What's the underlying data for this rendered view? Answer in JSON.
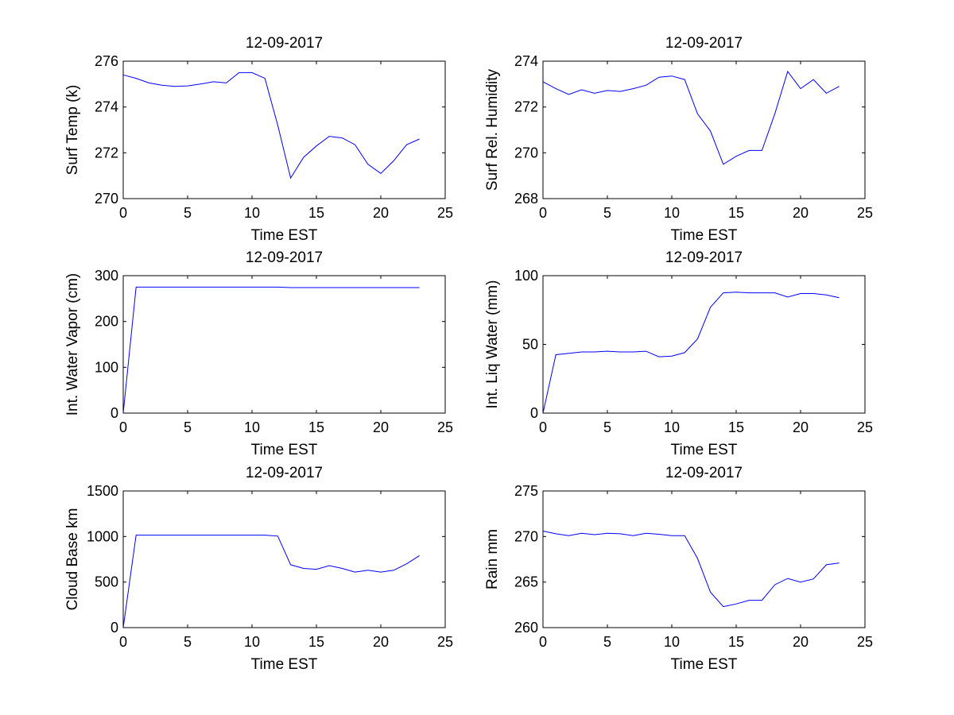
{
  "figure": {
    "background": "#ffffff",
    "line_color": "#0000ff"
  },
  "chart_data": [
    {
      "type": "line",
      "title": "12-09-2017",
      "xlabel": "Time EST",
      "ylabel": "Surf Temp (k)",
      "xlim": [
        0,
        25
      ],
      "ylim": [
        270,
        276
      ],
      "xticks": [
        "0",
        "5",
        "10",
        "15",
        "20",
        "25"
      ],
      "yticks": [
        "270",
        "272",
        "274",
        "276"
      ],
      "grid": false,
      "series": [
        {
          "x": [
            0,
            1,
            2,
            3,
            4,
            5,
            6,
            7,
            8,
            9,
            10,
            11,
            12,
            13,
            14,
            15,
            16,
            17,
            18,
            19,
            20,
            21,
            22,
            23
          ],
          "y": [
            275.4,
            275.25,
            275.05,
            274.95,
            274.9,
            274.92,
            275.0,
            275.1,
            275.05,
            275.5,
            275.5,
            275.25,
            273.2,
            270.9,
            271.8,
            272.3,
            272.72,
            272.65,
            272.35,
            271.5,
            271.1,
            271.65,
            272.35,
            272.6
          ]
        }
      ]
    },
    {
      "type": "line",
      "title": "12-09-2017",
      "xlabel": "Time EST",
      "ylabel": "Surf Rel. Humidity",
      "xlim": [
        0,
        25
      ],
      "ylim": [
        268,
        274
      ],
      "xticks": [
        "0",
        "5",
        "10",
        "15",
        "20",
        "25"
      ],
      "yticks": [
        "268",
        "270",
        "272",
        "274"
      ],
      "grid": false,
      "series": [
        {
          "x": [
            0,
            1,
            2,
            3,
            4,
            5,
            6,
            7,
            8,
            9,
            10,
            11,
            12,
            13,
            14,
            15,
            16,
            17,
            18,
            19,
            20,
            21,
            22,
            23
          ],
          "y": [
            273.1,
            272.8,
            272.55,
            272.75,
            272.6,
            272.72,
            272.68,
            272.8,
            272.95,
            273.3,
            273.35,
            273.2,
            271.7,
            270.95,
            269.5,
            269.85,
            270.1,
            270.1,
            271.7,
            273.55,
            272.8,
            273.2,
            272.6,
            272.9
          ]
        }
      ]
    },
    {
      "type": "line",
      "title": "12-09-2017",
      "xlabel": "Time EST",
      "ylabel": "Int. Water Vapor (cm)",
      "xlim": [
        0,
        25
      ],
      "ylim": [
        0,
        300
      ],
      "xticks": [
        "0",
        "5",
        "10",
        "15",
        "20",
        "25"
      ],
      "yticks": [
        "0",
        "100",
        "200",
        "300"
      ],
      "grid": false,
      "series": [
        {
          "x": [
            0,
            1,
            2,
            3,
            4,
            5,
            6,
            7,
            8,
            9,
            10,
            11,
            12,
            13,
            14,
            15,
            16,
            17,
            18,
            19,
            20,
            21,
            22,
            23
          ],
          "y": [
            0,
            275,
            275,
            275,
            275,
            275,
            275,
            275,
            275,
            275,
            275,
            275,
            275,
            274,
            274,
            274,
            274,
            274,
            274,
            274,
            274,
            274,
            274,
            274
          ]
        }
      ]
    },
    {
      "type": "line",
      "title": "12-09-2017",
      "xlabel": "Time EST",
      "ylabel": "Int. Liq Water (mm)",
      "xlim": [
        0,
        25
      ],
      "ylim": [
        0,
        100
      ],
      "xticks": [
        "0",
        "5",
        "10",
        "15",
        "20",
        "25"
      ],
      "yticks": [
        "0",
        "50",
        "100"
      ],
      "grid": false,
      "series": [
        {
          "x": [
            0,
            1,
            2,
            3,
            4,
            5,
            6,
            7,
            8,
            9,
            10,
            11,
            12,
            13,
            14,
            15,
            16,
            17,
            18,
            19,
            20,
            21,
            22,
            23
          ],
          "y": [
            0,
            42.5,
            43.5,
            44.5,
            44.5,
            45,
            44.5,
            44.5,
            45,
            41,
            41.5,
            44,
            54,
            77,
            87.5,
            88,
            87.5,
            87.5,
            87.5,
            84.5,
            87,
            87,
            86,
            84
          ]
        }
      ]
    },
    {
      "type": "line",
      "title": "12-09-2017",
      "xlabel": "Time EST",
      "ylabel": "Cloud Base km",
      "xlim": [
        0,
        25
      ],
      "ylim": [
        0,
        1500
      ],
      "xticks": [
        "0",
        "5",
        "10",
        "15",
        "20",
        "25"
      ],
      "yticks": [
        "0",
        "500",
        "1000",
        "1500"
      ],
      "grid": false,
      "series": [
        {
          "x": [
            0,
            1,
            2,
            3,
            4,
            5,
            6,
            7,
            8,
            9,
            10,
            11,
            12,
            13,
            14,
            15,
            16,
            17,
            18,
            19,
            20,
            21,
            22,
            23
          ],
          "y": [
            0,
            1015,
            1015,
            1015,
            1015,
            1015,
            1015,
            1015,
            1015,
            1015,
            1015,
            1015,
            1005,
            690,
            650,
            640,
            680,
            650,
            610,
            630,
            610,
            630,
            700,
            790
          ]
        }
      ]
    },
    {
      "type": "line",
      "title": "12-09-2017",
      "xlabel": "Time EST",
      "ylabel": "Rain mm",
      "xlim": [
        0,
        25
      ],
      "ylim": [
        260,
        275
      ],
      "xticks": [
        "0",
        "5",
        "10",
        "15",
        "20",
        "25"
      ],
      "yticks": [
        "260",
        "265",
        "270",
        "275"
      ],
      "grid": false,
      "series": [
        {
          "x": [
            0,
            1,
            2,
            3,
            4,
            5,
            6,
            7,
            8,
            9,
            10,
            11,
            12,
            13,
            14,
            15,
            16,
            17,
            18,
            19,
            20,
            21,
            22,
            23
          ],
          "y": [
            270.6,
            270.3,
            270.1,
            270.35,
            270.2,
            270.35,
            270.3,
            270.1,
            270.35,
            270.25,
            270.1,
            270.1,
            267.6,
            263.9,
            262.3,
            262.6,
            263.0,
            263.0,
            264.7,
            265.4,
            265.0,
            265.35,
            266.9,
            267.1
          ]
        }
      ]
    }
  ]
}
